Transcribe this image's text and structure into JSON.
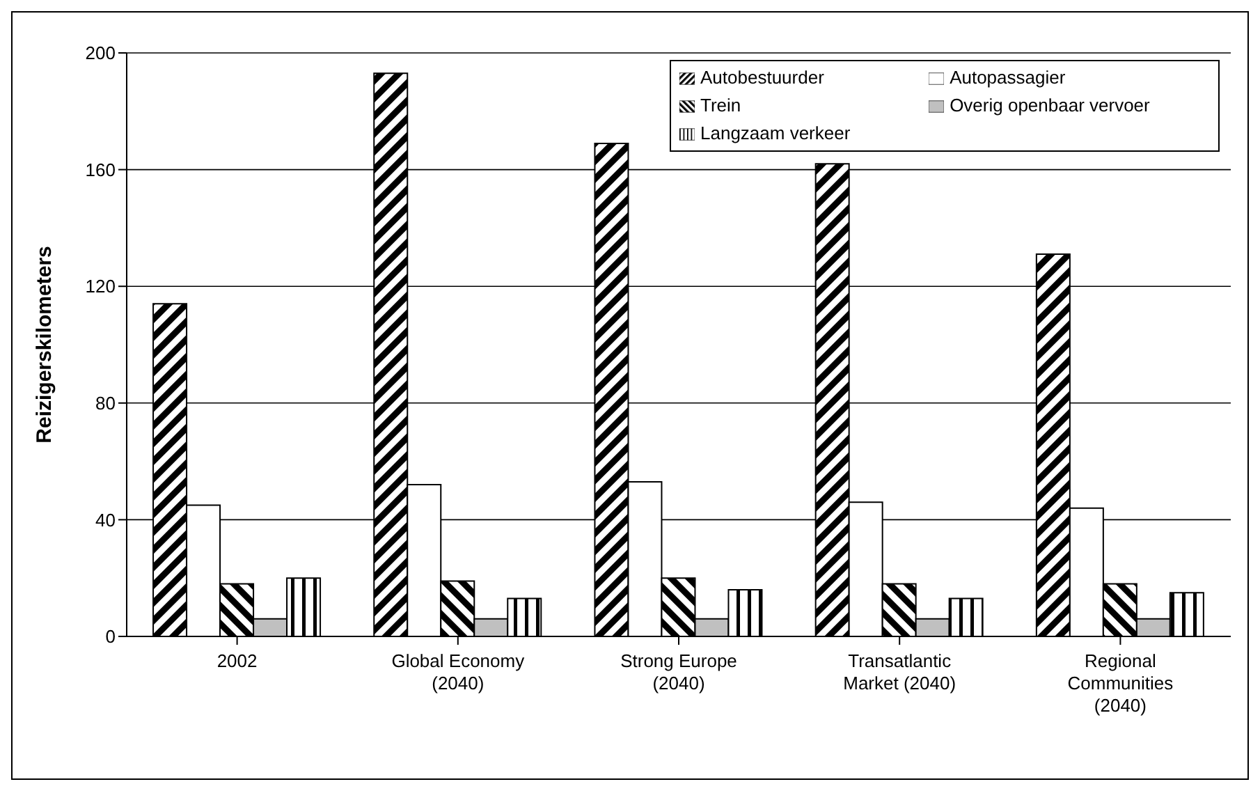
{
  "chart_data": {
    "type": "bar",
    "ylabel": "Reizigerskilometers",
    "categories": [
      "2002",
      "Global Economy (2040)",
      "Strong Europe (2040)",
      "Transatlantic Market (2040)",
      "Regional Communities (2040)"
    ],
    "series": [
      {
        "name": "Autobestuurder",
        "color": "#000000",
        "values": [
          114,
          193,
          169,
          162,
          131
        ]
      },
      {
        "name": "Autopassagier",
        "color": "#ffffff",
        "values": [
          45,
          52,
          53,
          46,
          44
        ]
      },
      {
        "name": "Trein",
        "color": "#000000",
        "values": [
          18,
          19,
          20,
          18,
          18
        ]
      },
      {
        "name": "Overig openbaar vervoer",
        "color": "#c0c0c0",
        "values": [
          6,
          6,
          6,
          6,
          6
        ]
      },
      {
        "name": "Langzaam verkeer",
        "color": "#000000",
        "values": [
          20,
          13,
          16,
          13,
          15
        ]
      }
    ],
    "ylim": [
      0,
      200
    ],
    "yticks": [
      0,
      40,
      80,
      120,
      160,
      200
    ],
    "grid": "y",
    "legend": "top right"
  }
}
